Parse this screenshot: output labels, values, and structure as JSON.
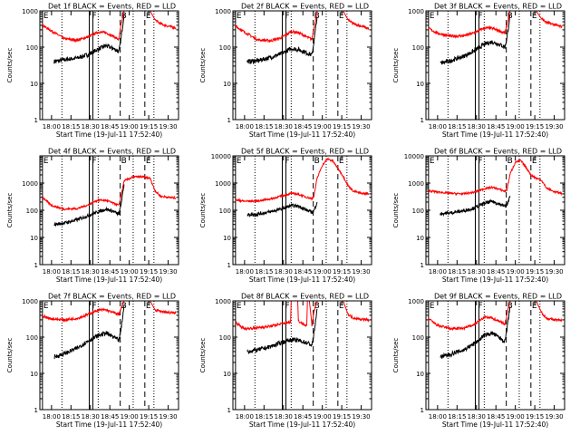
{
  "figure": {
    "background": "#ffffff",
    "axis_color": "#000000",
    "events_color": "#000000",
    "lld_color": "#ff0000"
  },
  "common": {
    "xlabel": "Start Time (19-Jul-11 17:52:40)",
    "ylabel": "Counts/sec",
    "xticks": [
      "18:00",
      "18:15",
      "18:30",
      "18:45",
      "19:00",
      "19:15",
      "19:30"
    ],
    "xtick_values_min": [
      0,
      15,
      30,
      45,
      60,
      75,
      90
    ],
    "xlim_min": [
      -9,
      98
    ],
    "ylim": [
      1,
      1000
    ],
    "yticks": [
      "1",
      "10",
      "100",
      "1000"
    ],
    "ylog": true,
    "markers": [
      {
        "label": "E",
        "time_min": -7,
        "style": "solid"
      },
      {
        "label": "",
        "time_min": 8,
        "style": "dotted"
      },
      {
        "label": "F",
        "time_min": 30.5,
        "style": "double"
      },
      {
        "label": "",
        "time_min": 36,
        "style": "dotted"
      },
      {
        "label": "B",
        "time_min": 53,
        "style": "dashed"
      },
      {
        "label": "",
        "time_min": 63,
        "style": "dotted"
      },
      {
        "label": "E",
        "time_min": 72,
        "style": "dashed"
      },
      {
        "label": "",
        "time_min": 79,
        "style": "dotted"
      }
    ]
  },
  "chart_data": [
    {
      "type": "line",
      "title": "Det 1f BLACK = Events, RED = LLD",
      "ylim": [
        1,
        1000
      ],
      "yticks": [
        "1",
        "10",
        "100",
        "1000"
      ],
      "series": [
        {
          "name": "Events",
          "x": [
            2,
            10,
            20,
            28,
            36,
            42,
            48,
            52,
            53.5,
            56
          ],
          "y": [
            40,
            45,
            50,
            62,
            88,
            110,
            90,
            75,
            160,
            820
          ]
        },
        {
          "name": "LLD",
          "x": [
            -7,
            0,
            10,
            20,
            28,
            36,
            42,
            48,
            52,
            53.5,
            56,
            62,
            64,
            70,
            73,
            76,
            80,
            84,
            90,
            96
          ],
          "y": [
            400,
            280,
            170,
            155,
            190,
            260,
            250,
            195,
            160,
            380,
            1000,
            1000,
            1000,
            1000,
            1000,
            1000,
            560,
            440,
            380,
            340
          ]
        }
      ]
    },
    {
      "type": "line",
      "title": "Det 2f BLACK = Events, RED = LLD",
      "ylim": [
        1,
        1000
      ],
      "yticks": [
        "1",
        "10",
        "100",
        "1000"
      ],
      "series": [
        {
          "name": "Events",
          "x": [
            2,
            10,
            20,
            28,
            36,
            42,
            48,
            52,
            53.5,
            56
          ],
          "y": [
            40,
            42,
            52,
            65,
            92,
            85,
            70,
            60,
            140,
            700
          ]
        },
        {
          "name": "LLD",
          "x": [
            -7,
            0,
            10,
            20,
            28,
            36,
            42,
            48,
            52,
            53.5,
            56,
            62,
            64,
            70,
            73,
            76,
            80,
            84,
            90,
            96
          ],
          "y": [
            380,
            260,
            160,
            150,
            180,
            270,
            250,
            190,
            165,
            340,
            1000,
            1000,
            1000,
            1000,
            1000,
            1000,
            560,
            440,
            380,
            320
          ]
        }
      ]
    },
    {
      "type": "line",
      "title": "Det 3f BLACK = Events, RED = LLD",
      "ylim": [
        1,
        1000
      ],
      "yticks": [
        "1",
        "10",
        "100",
        "1000"
      ],
      "series": [
        {
          "name": "Events",
          "x": [
            2,
            10,
            20,
            28,
            36,
            42,
            48,
            52,
            53.5,
            56
          ],
          "y": [
            36,
            42,
            56,
            78,
            120,
            140,
            118,
            100,
            180,
            800
          ]
        },
        {
          "name": "LLD",
          "x": [
            -7,
            0,
            10,
            20,
            28,
            36,
            42,
            48,
            52,
            53.5,
            56,
            62,
            64,
            70,
            73,
            76,
            80,
            84,
            90,
            96
          ],
          "y": [
            330,
            240,
            200,
            205,
            245,
            340,
            330,
            280,
            240,
            400,
            1000,
            1000,
            1000,
            1000,
            1000,
            1000,
            620,
            480,
            420,
            360
          ]
        }
      ]
    },
    {
      "type": "line",
      "title": "Det 4f BLACK = Events, RED = LLD",
      "ylim": [
        1,
        10000
      ],
      "yticks": [
        "1",
        "10",
        "100",
        "1000"
      ],
      "series": [
        {
          "name": "Events",
          "x": [
            2,
            10,
            20,
            28,
            36,
            42,
            48,
            52,
            53.5,
            56
          ],
          "y": [
            30,
            34,
            45,
            62,
            88,
            110,
            90,
            70,
            150,
            900
          ]
        },
        {
          "name": "LLD",
          "x": [
            -7,
            0,
            10,
            20,
            28,
            36,
            42,
            48,
            52,
            53.5,
            56,
            62,
            64,
            70,
            73,
            76,
            80,
            84,
            90,
            96
          ],
          "y": [
            300,
            150,
            110,
            115,
            155,
            240,
            230,
            180,
            150,
            320,
            1200,
            1600,
            1700,
            1700,
            1600,
            1500,
            520,
            330,
            300,
            280
          ]
        }
      ]
    },
    {
      "type": "line",
      "title": "Det 5f BLACK = Events, RED = LLD",
      "ylim": [
        1,
        10000
      ],
      "yticks": [
        "1",
        "10",
        "100",
        "1000",
        "10000"
      ],
      "series": [
        {
          "name": "Events",
          "x": [
            2,
            10,
            20,
            28,
            36,
            42,
            48,
            52,
            53.5,
            56
          ],
          "y": [
            68,
            72,
            88,
            110,
            150,
            140,
            100,
            85,
            95,
            200
          ]
        },
        {
          "name": "LLD",
          "x": [
            -7,
            0,
            10,
            20,
            28,
            36,
            42,
            48,
            52,
            53.5,
            56,
            60,
            64,
            68,
            72,
            76,
            80,
            84,
            90,
            96
          ],
          "y": [
            240,
            215,
            220,
            260,
            330,
            420,
            380,
            300,
            270,
            330,
            1500,
            4500,
            7800,
            6500,
            3500,
            1800,
            800,
            500,
            420,
            400
          ]
        }
      ]
    },
    {
      "type": "line",
      "title": "Det 6f BLACK = Events, RED = LLD",
      "ylim": [
        1,
        10000
      ],
      "yticks": [
        "1",
        "10",
        "100",
        "1000",
        "10000"
      ],
      "series": [
        {
          "name": "Events",
          "x": [
            2,
            10,
            20,
            28,
            36,
            42,
            48,
            52,
            53.5,
            56
          ],
          "y": [
            75,
            80,
            95,
            120,
            180,
            210,
            170,
            140,
            150,
            330
          ]
        },
        {
          "name": "LLD",
          "x": [
            -7,
            0,
            10,
            20,
            28,
            36,
            42,
            48,
            52,
            53.5,
            56,
            60,
            64,
            68,
            72,
            76,
            80,
            84,
            90,
            96
          ],
          "y": [
            520,
            470,
            420,
            400,
            460,
            620,
            700,
            580,
            500,
            560,
            2200,
            5800,
            6800,
            4000,
            2000,
            1500,
            1300,
            650,
            480,
            420
          ]
        }
      ]
    },
    {
      "type": "line",
      "title": "Det 7f BLACK = Events, RED = LLD",
      "ylim": [
        1,
        1000
      ],
      "yticks": [
        "1",
        "10",
        "100",
        "1000"
      ],
      "series": [
        {
          "name": "Events",
          "x": [
            2,
            10,
            20,
            28,
            36,
            42,
            48,
            52,
            53.5,
            56
          ],
          "y": [
            28,
            35,
            50,
            78,
            110,
            130,
            100,
            80,
            150,
            750
          ]
        },
        {
          "name": "LLD",
          "x": [
            -7,
            0,
            10,
            20,
            28,
            36,
            42,
            48,
            52,
            53.5,
            56,
            62,
            64,
            70,
            73,
            76,
            80,
            84,
            90,
            96
          ],
          "y": [
            380,
            320,
            300,
            330,
            420,
            560,
            560,
            470,
            420,
            600,
            1000,
            1000,
            1000,
            1000,
            1000,
            1000,
            560,
            520,
            480,
            460
          ]
        }
      ]
    },
    {
      "type": "line",
      "title": "Det 8f BLACK = Events, RED = LLD",
      "ylim": [
        1,
        1000
      ],
      "yticks": [
        "1",
        "10",
        "100",
        "1000"
      ],
      "series": [
        {
          "name": "Events",
          "x": [
            2,
            10,
            20,
            28,
            36,
            42,
            48,
            52,
            53.5,
            56
          ],
          "y": [
            40,
            44,
            55,
            70,
            85,
            80,
            70,
            60,
            120,
            600
          ]
        },
        {
          "name": "LLD",
          "x": [
            -7,
            0,
            10,
            20,
            28,
            35.5,
            36,
            38,
            40,
            41,
            41.5,
            42,
            48,
            48.5,
            49,
            50,
            52,
            53.5,
            56,
            62,
            64,
            70,
            73,
            76,
            80,
            84,
            90,
            96
          ],
          "y": [
            250,
            170,
            180,
            200,
            230,
            260,
            1000,
            1000,
            1000,
            1000,
            290,
            270,
            200,
            1000,
            1000,
            1000,
            215,
            500,
            1000,
            1000,
            1000,
            1000,
            1000,
            1000,
            420,
            340,
            310,
            300
          ]
        }
      ]
    },
    {
      "type": "line",
      "title": "Det 9f BLACK = Events, RED = LLD",
      "ylim": [
        1,
        1000
      ],
      "yticks": [
        "1",
        "10",
        "100",
        "1000"
      ],
      "series": [
        {
          "name": "Events",
          "x": [
            2,
            10,
            20,
            28,
            36,
            42,
            48,
            52,
            53.5,
            56
          ],
          "y": [
            28,
            34,
            44,
            65,
            110,
            130,
            95,
            75,
            160,
            700
          ]
        },
        {
          "name": "LLD",
          "x": [
            -7,
            0,
            10,
            20,
            28,
            36,
            42,
            48,
            52,
            53.5,
            56,
            62,
            64,
            70,
            73,
            76,
            80,
            84,
            90,
            96
          ],
          "y": [
            320,
            210,
            170,
            175,
            220,
            350,
            340,
            270,
            230,
            420,
            1000,
            1000,
            1000,
            1000,
            1000,
            1000,
            500,
            330,
            300,
            290
          ]
        }
      ]
    }
  ]
}
